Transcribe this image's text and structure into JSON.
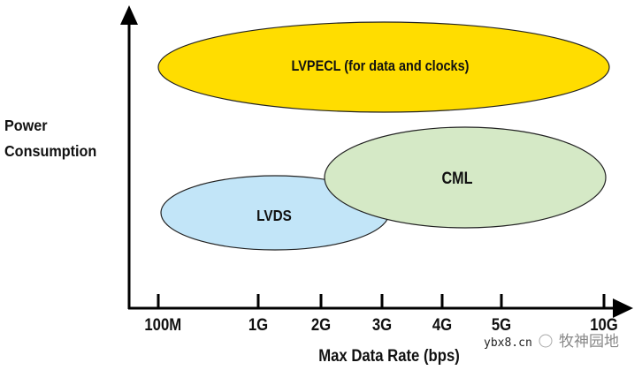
{
  "y_axis_label": [
    "Power",
    "Consumption"
  ],
  "x_axis_label": "Max Data Rate (bps)",
  "x_ticks": [
    "100M",
    "1G",
    "2G",
    "3G",
    "4G",
    "5G",
    "10G"
  ],
  "regions": [
    {
      "label": "LVPECL (for data and clocks)",
      "color": "#FFDD00"
    },
    {
      "label": "LVDS",
      "color": "#C2E5F8"
    },
    {
      "label": "CML",
      "color": "#D5E9C6"
    }
  ],
  "watermark": {
    "site": "ybx8.cn",
    "name": "牧神园地"
  }
}
